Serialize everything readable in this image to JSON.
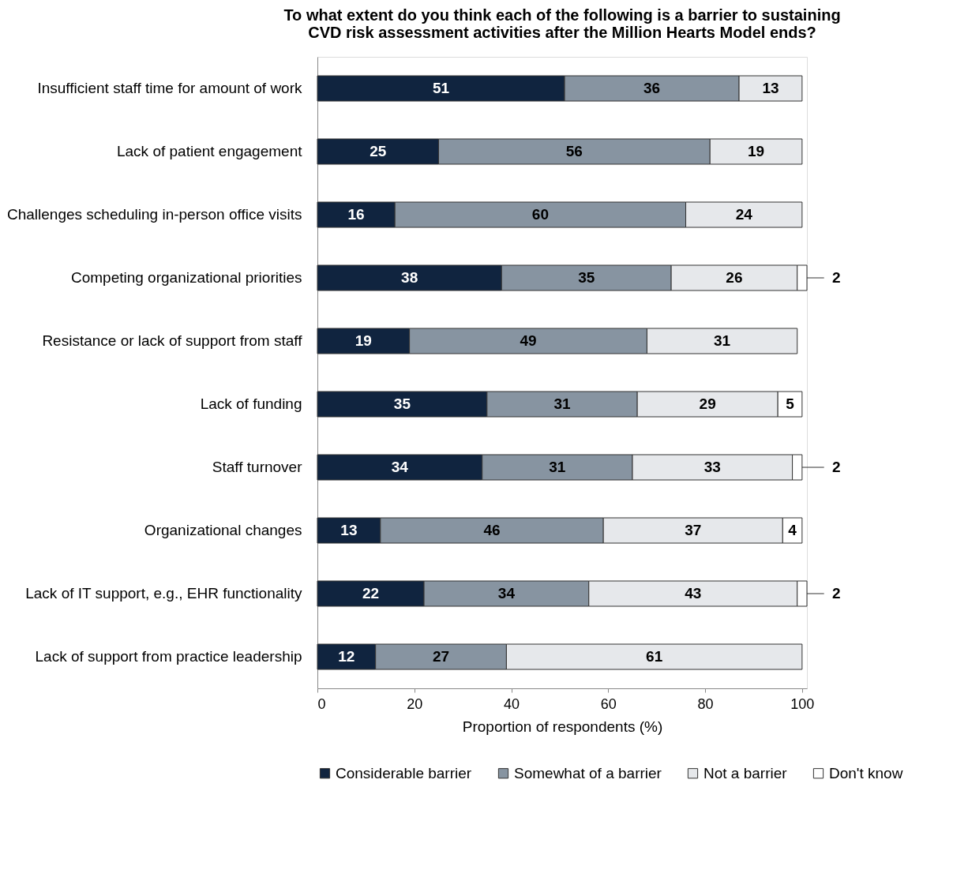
{
  "chart_data": {
    "type": "bar",
    "orientation": "horizontal",
    "stacked": true,
    "title": [
      "To what extent do you think each of the following is a barrier to sustaining",
      "CVD risk assessment activities after the Million  Hearts Model ends?"
    ],
    "xlabel": "Proportion of respondents (%)",
    "categories": [
      "Insufficient staff time for amount of work",
      "Lack of patient engagement",
      "Challenges scheduling in-person office visits",
      "Competing organizational priorities",
      "Resistance or lack of support from staff",
      "Lack of funding",
      "Staff turnover",
      "Organizational changes",
      "Lack of IT support, e.g., EHR functionality",
      "Lack of support from practice leadership"
    ],
    "series": [
      {
        "name": "Considerable barrier",
        "color": "#10243f",
        "values": [
          51,
          25,
          16,
          38,
          19,
          35,
          34,
          13,
          22,
          12
        ]
      },
      {
        "name": "Somewhat of a barrier",
        "color": "#8794a1",
        "values": [
          36,
          56,
          60,
          35,
          49,
          31,
          31,
          46,
          34,
          27
        ]
      },
      {
        "name": "Not a barrier",
        "color": "#e6e8eb",
        "values": [
          13,
          19,
          24,
          26,
          31,
          29,
          33,
          37,
          43,
          61
        ]
      },
      {
        "name": "Don't know",
        "color": "#ffffff",
        "values": [
          null,
          null,
          null,
          2,
          null,
          5,
          2,
          4,
          2,
          null
        ]
      }
    ],
    "data_labels": true,
    "xlim": [
      0,
      101
    ],
    "xticks": [
      0,
      20,
      40,
      60,
      80,
      100
    ],
    "grid": false,
    "legend": "bottom"
  }
}
